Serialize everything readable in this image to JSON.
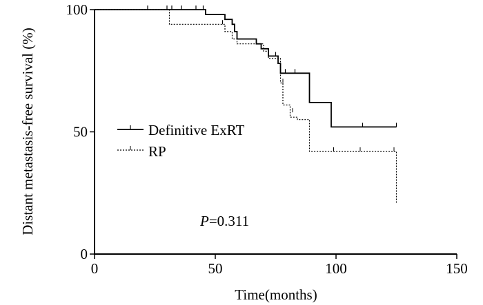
{
  "chart_data": {
    "type": "line",
    "subtype": "kaplan-meier",
    "title": "",
    "xlabel": "Time(months)",
    "ylabel": "Distant metastasis-free survival (%)",
    "xlim": [
      0,
      150
    ],
    "ylim": [
      0,
      100
    ],
    "xticks": [
      "0",
      "50",
      "100",
      "150"
    ],
    "yticks": [
      "0",
      "50",
      "100"
    ],
    "grid": false,
    "legend_position": "middle-left",
    "annotation": {
      "prefix": "P",
      "value": "=0.311"
    },
    "series": [
      {
        "name": "Definitive ExRT",
        "style": "solid",
        "steps": [
          [
            0,
            100
          ],
          [
            46,
            100
          ],
          [
            46,
            98
          ],
          [
            54,
            98
          ],
          [
            54,
            96
          ],
          [
            57,
            96
          ],
          [
            57,
            94
          ],
          [
            58,
            94
          ],
          [
            58,
            91
          ],
          [
            59,
            91
          ],
          [
            59,
            88
          ],
          [
            67,
            88
          ],
          [
            67,
            86
          ],
          [
            69,
            86
          ],
          [
            69,
            84
          ],
          [
            72,
            84
          ],
          [
            72,
            81
          ],
          [
            76,
            81
          ],
          [
            76,
            78
          ],
          [
            77,
            78
          ],
          [
            77,
            74
          ],
          [
            89,
            74
          ],
          [
            89,
            62
          ],
          [
            98,
            62
          ],
          [
            98,
            52
          ],
          [
            125,
            52
          ]
        ],
        "censored": [
          [
            22,
            100
          ],
          [
            30,
            100
          ],
          [
            32,
            100
          ],
          [
            36,
            100
          ],
          [
            42,
            100
          ],
          [
            45,
            100
          ],
          [
            75,
            81
          ],
          [
            79,
            74
          ],
          [
            83,
            74
          ],
          [
            111,
            52
          ],
          [
            125,
            52
          ]
        ]
      },
      {
        "name": "RP",
        "style": "dotted",
        "steps": [
          [
            0,
            100
          ],
          [
            31,
            100
          ],
          [
            31,
            94
          ],
          [
            54,
            94
          ],
          [
            54,
            91
          ],
          [
            57,
            91
          ],
          [
            57,
            88
          ],
          [
            59,
            88
          ],
          [
            59,
            86
          ],
          [
            70,
            86
          ],
          [
            70,
            83
          ],
          [
            72,
            83
          ],
          [
            72,
            80
          ],
          [
            77,
            80
          ],
          [
            77,
            70
          ],
          [
            78,
            70
          ],
          [
            78,
            61
          ],
          [
            81,
            61
          ],
          [
            81,
            56
          ],
          [
            84,
            56
          ],
          [
            84,
            55
          ],
          [
            89,
            55
          ],
          [
            89,
            42
          ],
          [
            125,
            42
          ],
          [
            125,
            21
          ]
        ],
        "censored": [
          [
            53,
            94
          ],
          [
            78,
            70
          ],
          [
            82,
            58
          ],
          [
            99,
            42
          ],
          [
            110,
            42
          ],
          [
            124,
            42
          ]
        ]
      }
    ]
  }
}
